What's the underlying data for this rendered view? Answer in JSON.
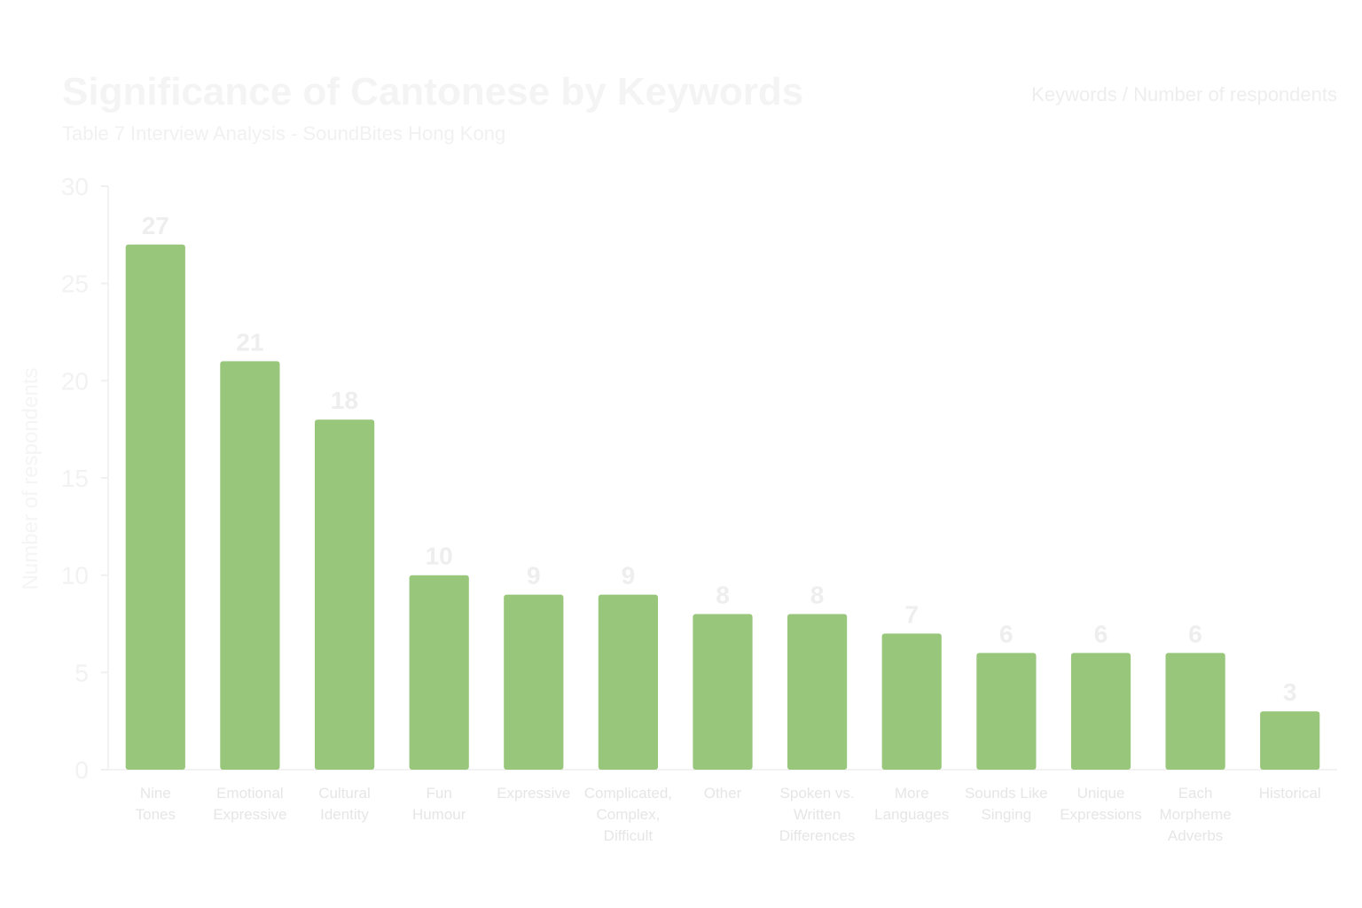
{
  "chart_data": {
    "type": "bar",
    "title": "Significance of Cantonese by Keywords",
    "subtitle": "Table 7 Interview Analysis - SoundBites Hong Kong",
    "legend_note": "Keywords / Number of respondents",
    "ylabel": "Number of respondents",
    "xlabel": "",
    "ylim": [
      0,
      30
    ],
    "yticks": [
      0,
      5,
      10,
      15,
      20,
      25,
      30
    ],
    "grid": false,
    "bar_color": "#98c67a",
    "categories": [
      [
        "Nine",
        "Tones"
      ],
      [
        "Emotional",
        "Expressive"
      ],
      [
        "Cultural",
        "Identity"
      ],
      [
        "Fun",
        "Humour"
      ],
      [
        "Expressive"
      ],
      [
        "Complicated,",
        "Complex,",
        "Difficult"
      ],
      [
        "Other"
      ],
      [
        "Spoken vs.",
        "Written",
        "Differences"
      ],
      [
        "More",
        "Languages"
      ],
      [
        "Sounds Like",
        "Singing"
      ],
      [
        "Unique",
        "Expressions"
      ],
      [
        "Each",
        "Morpheme",
        "Adverbs"
      ],
      [
        "Historical"
      ]
    ],
    "values": [
      27,
      21,
      18,
      10,
      9,
      9,
      8,
      8,
      7,
      6,
      6,
      6,
      3
    ]
  }
}
